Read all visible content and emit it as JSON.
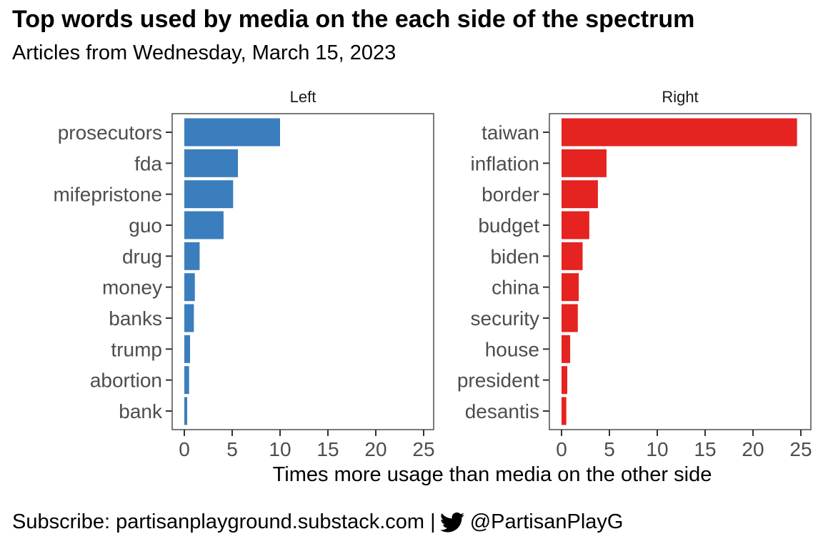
{
  "title": "Top words used by media on the each side of the spectrum",
  "subtitle": "Articles from Wednesday, March 15, 2023",
  "footer": {
    "subscribe": "Subscribe: partisanplayground.substack.com |",
    "twitter_icon": "twitter-bird-icon",
    "handle": "@PartisanPlayG"
  },
  "chart_data": {
    "type": "bar",
    "orientation": "horizontal",
    "xlabel": "Times more usage than media on the other side",
    "xlim": [
      0,
      25
    ],
    "xticks": [
      0,
      5,
      10,
      15,
      20,
      25
    ],
    "grid": false,
    "panels": [
      {
        "name": "Left",
        "color": "#3a7ebd",
        "categories": [
          "prosecutors",
          "fda",
          "mifepristone",
          "guo",
          "drug",
          "money",
          "banks",
          "trump",
          "abortion",
          "bank"
        ],
        "values": [
          10.0,
          5.6,
          5.1,
          4.1,
          1.6,
          1.1,
          1.0,
          0.6,
          0.5,
          0.3
        ]
      },
      {
        "name": "Right",
        "color": "#e52320",
        "categories": [
          "taiwan",
          "inflation",
          "border",
          "budget",
          "biden",
          "china",
          "security",
          "house",
          "president",
          "desantis"
        ],
        "values": [
          24.6,
          4.7,
          3.8,
          2.9,
          2.2,
          1.8,
          1.7,
          0.9,
          0.6,
          0.5
        ]
      }
    ]
  }
}
